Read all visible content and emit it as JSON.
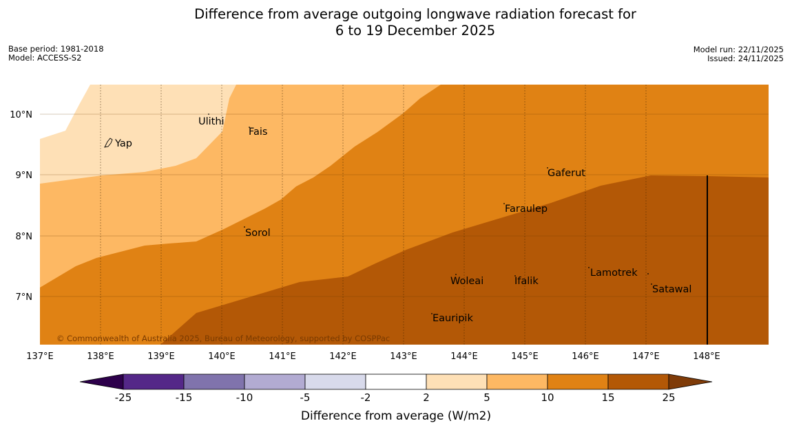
{
  "title": {
    "line1": "Difference from average outgoing longwave radiation forecast for",
    "line2": "6 to 19 December 2025"
  },
  "info_left": {
    "base_period": "Base period: 1981-2018",
    "model": "Model: ACCESS-S2"
  },
  "info_right": {
    "model_run": "Model run: 22/11/2025",
    "issued": "Issued: 24/11/2025"
  },
  "map": {
    "lon_labels": [
      "137°E",
      "138°E",
      "139°E",
      "140°E",
      "141°E",
      "142°E",
      "143°E",
      "144°E",
      "145°E",
      "146°E",
      "147°E",
      "148°E"
    ],
    "lat_labels": [
      "10°N",
      "9°N",
      "8°N",
      "7°N"
    ],
    "places": [
      {
        "name": "Yap"
      },
      {
        "name": "Ulithi"
      },
      {
        "name": "Fais"
      },
      {
        "name": "Gaferut"
      },
      {
        "name": "Faraulep"
      },
      {
        "name": "Sorol"
      },
      {
        "name": "Woleai"
      },
      {
        "name": "Ifalik"
      },
      {
        "name": "Lamotrek"
      },
      {
        "name": "Satawal"
      },
      {
        "name": "Eauripik"
      }
    ],
    "copyright": "© Commonwealth of Australia 2025, Bureau of Meteorology, supported by COSPPac"
  },
  "colorbar": {
    "ticks": [
      "-25",
      "-15",
      "-10",
      "-5",
      "-2",
      "2",
      "5",
      "10",
      "15",
      "25"
    ],
    "label": "Difference from average (W/m2)",
    "colors": {
      "below_min": "#2d004b",
      "c1": "#542788",
      "c2": "#8073ac",
      "c3": "#b2abd2",
      "c4": "#d8daeb",
      "c5": "#ffffff",
      "c6": "#fee0b6",
      "c7": "#fdb863",
      "c8": "#e08214",
      "c9": "#b35806",
      "above_max": "#7f3b08"
    }
  }
}
